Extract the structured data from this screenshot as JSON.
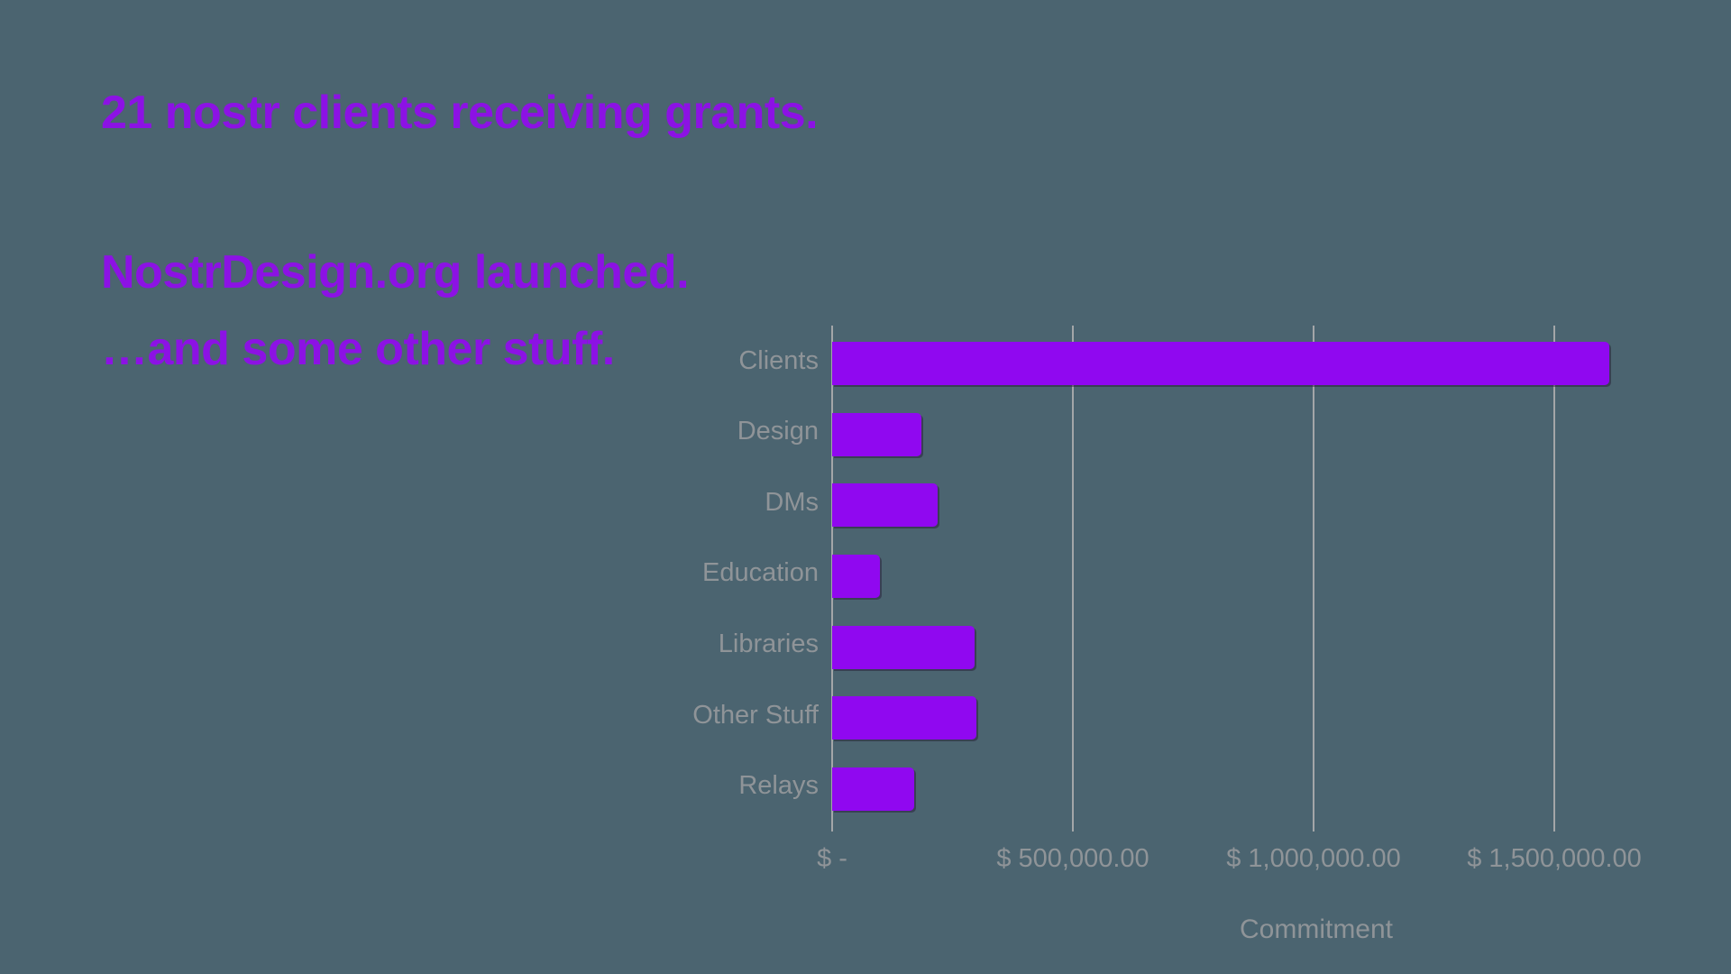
{
  "slide": {
    "headline": "21 nostr clients receiving grants.",
    "line2": "NostrDesign.org launched.",
    "line3": "…and some other stuff."
  },
  "colors": {
    "background": "#4B6470",
    "heading_purple": "#8C12E4",
    "bar_purple": "#9008F0",
    "label_gray": "#8F9498",
    "gridline_gray": "#A3A6A8"
  },
  "chart_data": {
    "type": "bar",
    "orientation": "horizontal",
    "title": "",
    "categories": [
      "Clients",
      "Design",
      "DMs",
      "Education",
      "Libraries",
      "Other Stuff",
      "Relays"
    ],
    "values": [
      1615000,
      185000,
      220000,
      100000,
      295000,
      300000,
      170000
    ],
    "xlabel": "Commitment",
    "ylabel": "",
    "x_ticks": [
      {
        "value": 0,
        "label": "$ -"
      },
      {
        "value": 500000,
        "label": "$ 500,000.00"
      },
      {
        "value": 1000000,
        "label": "$ 1,000,000.00"
      },
      {
        "value": 1500000,
        "label": "$ 1,500,000.00"
      }
    ],
    "xlim": [
      0,
      1642000
    ],
    "grid": "vertical-only",
    "legend": false,
    "bar_color": "#9008F0"
  }
}
